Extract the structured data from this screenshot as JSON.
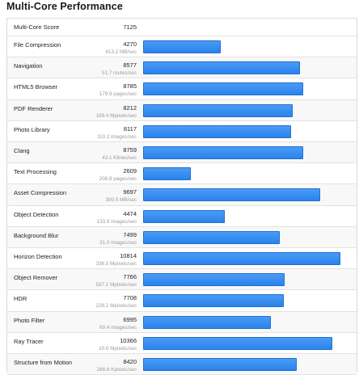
{
  "header": {
    "title": "Multi-Core Performance"
  },
  "multi_core": {
    "label": "Multi-Core Score",
    "score": "7125"
  },
  "scale_max": 10814,
  "tests": [
    {
      "name": "File Compression",
      "score": "4270",
      "value": 4270,
      "rate": "613.2 MB/sec"
    },
    {
      "name": "Navigation",
      "score": "8577",
      "value": 8577,
      "rate": "51.7 routes/sec"
    },
    {
      "name": "HTML5 Browser",
      "score": "8785",
      "value": 8785,
      "rate": "179.9 pages/sec"
    },
    {
      "name": "PDF Renderer",
      "score": "8212",
      "value": 8212,
      "rate": "189.4 Mpixels/sec"
    },
    {
      "name": "Photo Library",
      "score": "8117",
      "value": 8117,
      "rate": "110.2 images/sec"
    },
    {
      "name": "Clang",
      "score": "8759",
      "value": 8759,
      "rate": "43.1 Klines/sec"
    },
    {
      "name": "Text Processing",
      "score": "2609",
      "value": 2609,
      "rate": "208.9 pages/sec"
    },
    {
      "name": "Asset Compression",
      "score": "9697",
      "value": 9697,
      "rate": "300.5 MB/sec"
    },
    {
      "name": "Object Detection",
      "score": "4474",
      "value": 4474,
      "rate": "133.9 images/sec"
    },
    {
      "name": "Background Blur",
      "score": "7499",
      "value": 7499,
      "rate": "31.0 images/sec"
    },
    {
      "name": "Horizon Detection",
      "score": "10814",
      "value": 10814,
      "rate": "336.5 Mpixels/sec"
    },
    {
      "name": "Object Remover",
      "score": "7766",
      "value": 7766,
      "rate": "597.1 Mpixels/sec"
    },
    {
      "name": "HDR",
      "score": "7708",
      "value": 7708,
      "rate": "226.2 Mpixels/sec"
    },
    {
      "name": "Photo Filter",
      "score": "6995",
      "value": 6995,
      "rate": "69.4 images/sec"
    },
    {
      "name": "Ray Tracer",
      "score": "10366",
      "value": 10366,
      "rate": "10.0 Mpixels/sec"
    },
    {
      "name": "Structure from Motion",
      "score": "8420",
      "value": 8420,
      "rate": "266.6 Kpixels/sec"
    }
  ],
  "colors": {
    "bar": "#2a83ec",
    "bar_border": "#1f6fd0"
  }
}
